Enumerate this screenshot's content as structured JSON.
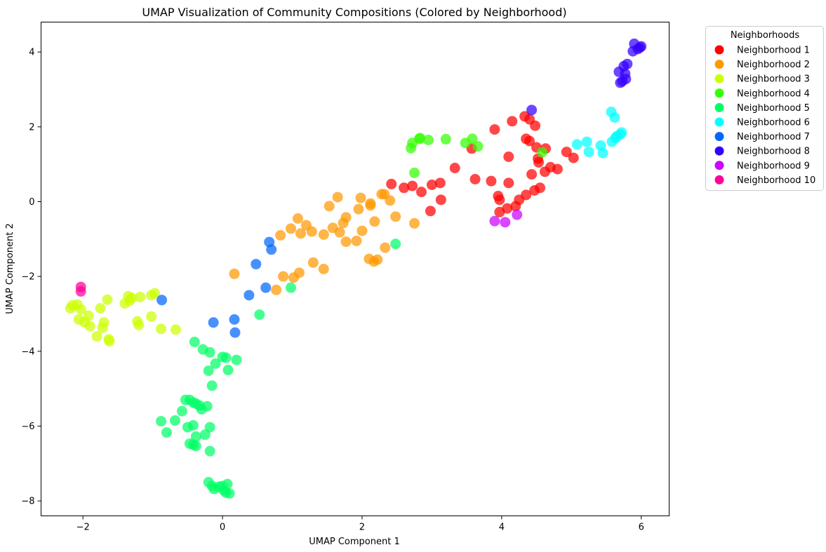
{
  "chart_data": {
    "type": "scatter",
    "title": "UMAP Visualization of Community Compositions (Colored by Neighborhood)",
    "xlabel": "UMAP Component 1",
    "ylabel": "UMAP Component 2",
    "xlim": [
      -2.6,
      6.4
    ],
    "ylim": [
      -8.4,
      4.8
    ],
    "xticks": [
      -2,
      0,
      2,
      4,
      6
    ],
    "yticks": [
      -8,
      -6,
      -4,
      -2,
      0,
      2,
      4
    ],
    "xtick_labels": [
      "−2",
      "0",
      "2",
      "4",
      "6"
    ],
    "ytick_labels": [
      "−8",
      "−6",
      "−4",
      "−2",
      "0",
      "2",
      "4"
    ],
    "grid": false,
    "legend": {
      "title": "Neighborhoods",
      "placement": "outside-top-right"
    },
    "series": [
      {
        "name": "Neighborhood 1",
        "color": "#ff0000",
        "points": [
          [
            2.42,
            0.47
          ],
          [
            2.6,
            0.37
          ],
          [
            2.72,
            0.42
          ],
          [
            2.85,
            0.26
          ],
          [
            3.0,
            0.45
          ],
          [
            3.12,
            0.5
          ],
          [
            3.13,
            0.05
          ],
          [
            2.98,
            -0.25
          ],
          [
            3.33,
            0.9
          ],
          [
            3.57,
            1.42
          ],
          [
            3.62,
            0.6
          ],
          [
            3.85,
            0.55
          ],
          [
            3.9,
            1.93
          ],
          [
            3.95,
            0.15
          ],
          [
            3.97,
            0.05
          ],
          [
            3.97,
            -0.28
          ],
          [
            4.08,
            -0.18
          ],
          [
            4.1,
            1.2
          ],
          [
            4.1,
            0.5
          ],
          [
            4.15,
            2.15
          ],
          [
            4.2,
            -0.12
          ],
          [
            4.25,
            0.05
          ],
          [
            4.33,
            2.28
          ],
          [
            4.35,
            0.18
          ],
          [
            4.35,
            1.68
          ],
          [
            4.4,
            2.2
          ],
          [
            4.4,
            1.62
          ],
          [
            4.43,
            0.73
          ],
          [
            4.47,
            0.3
          ],
          [
            4.48,
            2.03
          ],
          [
            4.5,
            1.45
          ],
          [
            4.52,
            1.15
          ],
          [
            4.53,
            1.05
          ],
          [
            4.55,
            0.37
          ],
          [
            4.62,
            0.8
          ],
          [
            4.63,
            1.42
          ],
          [
            4.7,
            0.92
          ],
          [
            4.8,
            0.87
          ],
          [
            4.93,
            1.33
          ],
          [
            5.03,
            1.17
          ]
        ]
      },
      {
        "name": "Neighborhood 2",
        "color": "#ff9900",
        "points": [
          [
            0.17,
            -1.93
          ],
          [
            0.77,
            -2.36
          ],
          [
            0.83,
            -0.9
          ],
          [
            0.87,
            -2.0
          ],
          [
            0.98,
            -0.72
          ],
          [
            1.02,
            -2.03
          ],
          [
            1.08,
            -0.45
          ],
          [
            1.1,
            -1.9
          ],
          [
            1.12,
            -0.85
          ],
          [
            1.2,
            -0.63
          ],
          [
            1.28,
            -0.8
          ],
          [
            1.3,
            -1.63
          ],
          [
            1.45,
            -0.88
          ],
          [
            1.45,
            -1.8
          ],
          [
            1.53,
            -0.12
          ],
          [
            1.58,
            -0.7
          ],
          [
            1.65,
            0.12
          ],
          [
            1.68,
            -0.82
          ],
          [
            1.73,
            -0.57
          ],
          [
            1.77,
            -0.42
          ],
          [
            1.77,
            -1.07
          ],
          [
            1.92,
            -1.05
          ],
          [
            1.95,
            -0.2
          ],
          [
            1.98,
            0.1
          ],
          [
            2.0,
            -0.78
          ],
          [
            2.1,
            -1.53
          ],
          [
            2.12,
            -0.05
          ],
          [
            2.12,
            -0.1
          ],
          [
            2.17,
            -1.6
          ],
          [
            2.18,
            -0.53
          ],
          [
            2.22,
            -1.55
          ],
          [
            2.28,
            0.2
          ],
          [
            2.32,
            0.2
          ],
          [
            2.33,
            -1.23
          ],
          [
            2.4,
            0.03
          ],
          [
            2.48,
            -0.4
          ],
          [
            2.75,
            -0.58
          ]
        ]
      },
      {
        "name": "Neighborhood 3",
        "color": "#ccff00",
        "points": [
          [
            -2.18,
            -2.85
          ],
          [
            -2.15,
            -2.77
          ],
          [
            -2.08,
            -2.75
          ],
          [
            -2.06,
            -3.15
          ],
          [
            -2.03,
            -2.88
          ],
          [
            -1.98,
            -3.22
          ],
          [
            -1.92,
            -3.05
          ],
          [
            -1.9,
            -3.33
          ],
          [
            -1.8,
            -3.6
          ],
          [
            -1.75,
            -2.85
          ],
          [
            -1.72,
            -3.37
          ],
          [
            -1.7,
            -3.23
          ],
          [
            -1.65,
            -2.62
          ],
          [
            -1.63,
            -3.68
          ],
          [
            -1.62,
            -3.73
          ],
          [
            -1.4,
            -2.72
          ],
          [
            -1.35,
            -2.53
          ],
          [
            -1.33,
            -2.65
          ],
          [
            -1.3,
            -2.57
          ],
          [
            -1.22,
            -3.2
          ],
          [
            -1.2,
            -3.3
          ],
          [
            -1.18,
            -2.55
          ],
          [
            -1.02,
            -3.07
          ],
          [
            -1.02,
            -2.5
          ],
          [
            -0.97,
            -2.45
          ],
          [
            -0.88,
            -3.4
          ],
          [
            -0.67,
            -3.42
          ]
        ]
      },
      {
        "name": "Neighborhood 4",
        "color": "#33ff00",
        "points": [
          [
            2.7,
            1.43
          ],
          [
            2.72,
            1.57
          ],
          [
            2.75,
            0.77
          ],
          [
            2.82,
            1.68
          ],
          [
            2.83,
            1.7
          ],
          [
            2.95,
            1.65
          ],
          [
            3.2,
            1.67
          ],
          [
            3.48,
            1.57
          ],
          [
            3.58,
            1.68
          ],
          [
            3.66,
            1.48
          ],
          [
            4.58,
            1.32
          ]
        ]
      },
      {
        "name": "Neighborhood 5",
        "color": "#00ff66",
        "points": [
          [
            -0.4,
            -3.75
          ],
          [
            -0.28,
            -3.95
          ],
          [
            -0.2,
            -4.52
          ],
          [
            -0.18,
            -4.03
          ],
          [
            -0.15,
            -4.92
          ],
          [
            -0.1,
            -4.33
          ],
          [
            0.0,
            -4.15
          ],
          [
            0.05,
            -4.17
          ],
          [
            0.08,
            -4.5
          ],
          [
            0.2,
            -4.23
          ],
          [
            -0.53,
            -5.3
          ],
          [
            -0.58,
            -5.6
          ],
          [
            -0.68,
            -5.85
          ],
          [
            -0.8,
            -6.17
          ],
          [
            -0.88,
            -5.87
          ],
          [
            -0.47,
            -5.3
          ],
          [
            -0.42,
            -5.37
          ],
          [
            -0.38,
            -5.4
          ],
          [
            -0.33,
            -5.45
          ],
          [
            -0.3,
            -5.55
          ],
          [
            -0.22,
            -5.47
          ],
          [
            -0.5,
            -6.03
          ],
          [
            -0.42,
            -5.98
          ],
          [
            -0.18,
            -6.03
          ],
          [
            -0.25,
            -6.23
          ],
          [
            -0.38,
            -6.28
          ],
          [
            -0.47,
            -6.47
          ],
          [
            -0.42,
            -6.5
          ],
          [
            -0.38,
            -6.53
          ],
          [
            -0.18,
            -6.67
          ],
          [
            -0.2,
            -7.5
          ],
          [
            -0.15,
            -7.6
          ],
          [
            -0.12,
            -7.68
          ],
          [
            -0.05,
            -7.62
          ],
          [
            0.0,
            -7.6
          ],
          [
            0.02,
            -7.72
          ],
          [
            0.05,
            -7.78
          ],
          [
            0.07,
            -7.55
          ],
          [
            0.1,
            -7.8
          ],
          [
            0.53,
            -3.02
          ],
          [
            0.98,
            -2.3
          ],
          [
            2.48,
            -1.13
          ]
        ]
      },
      {
        "name": "Neighborhood 6",
        "color": "#00ffff",
        "points": [
          [
            5.08,
            1.53
          ],
          [
            5.22,
            1.6
          ],
          [
            5.25,
            1.33
          ],
          [
            5.42,
            1.5
          ],
          [
            5.45,
            1.3
          ],
          [
            5.57,
            2.4
          ],
          [
            5.58,
            1.6
          ],
          [
            5.62,
            2.25
          ],
          [
            5.63,
            1.7
          ],
          [
            5.65,
            1.75
          ],
          [
            5.7,
            1.8
          ],
          [
            5.72,
            1.85
          ]
        ]
      },
      {
        "name": "Neighborhood 7",
        "color": "#0066ff",
        "points": [
          [
            -0.87,
            -2.63
          ],
          [
            -0.13,
            -3.23
          ],
          [
            0.17,
            -3.15
          ],
          [
            0.18,
            -3.5
          ],
          [
            0.38,
            -2.5
          ],
          [
            0.48,
            -1.67
          ],
          [
            0.62,
            -2.3
          ],
          [
            0.67,
            -1.08
          ],
          [
            0.7,
            -1.28
          ]
        ]
      },
      {
        "name": "Neighborhood 8",
        "color": "#3300ff",
        "points": [
          [
            4.43,
            2.45
          ],
          [
            5.68,
            3.47
          ],
          [
            5.7,
            3.18
          ],
          [
            5.73,
            3.22
          ],
          [
            5.75,
            3.62
          ],
          [
            5.77,
            3.42
          ],
          [
            5.78,
            3.28
          ],
          [
            5.8,
            3.68
          ],
          [
            5.88,
            4.02
          ],
          [
            5.9,
            4.22
          ],
          [
            5.95,
            4.08
          ],
          [
            5.98,
            4.12
          ],
          [
            6.0,
            4.15
          ]
        ]
      },
      {
        "name": "Neighborhood 9",
        "color": "#cc00ff",
        "points": [
          [
            3.9,
            -0.52
          ],
          [
            4.05,
            -0.55
          ],
          [
            4.22,
            -0.35
          ]
        ]
      },
      {
        "name": "Neighborhood 10",
        "color": "#ff0099",
        "points": [
          [
            -2.03,
            -2.28
          ],
          [
            -2.03,
            -2.4
          ]
        ]
      }
    ]
  }
}
